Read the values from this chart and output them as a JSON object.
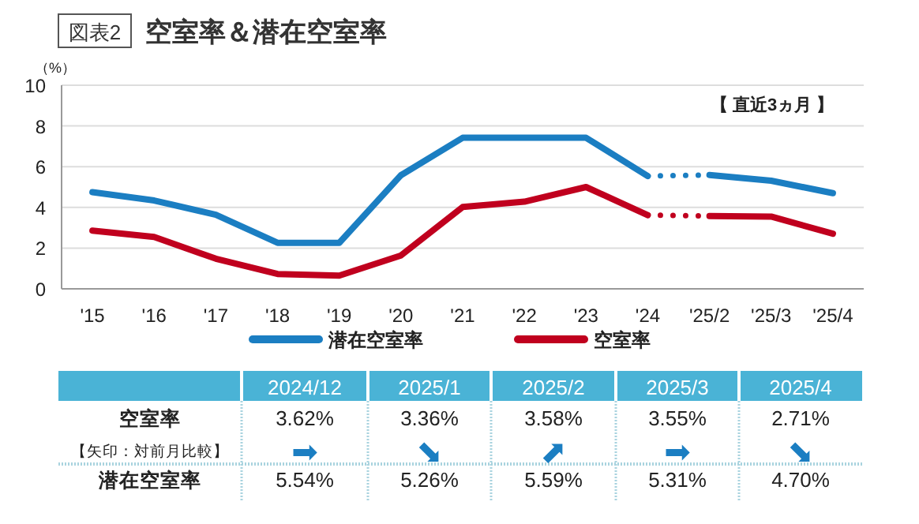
{
  "chart_data": {
    "type": "line",
    "title": "空室率＆潜在空室率",
    "ylabel": "（%）",
    "categories": [
      "'15",
      "'16",
      "'17",
      "'18",
      "'19",
      "'20",
      "'21",
      "'22",
      "'23",
      "'24",
      "'25/2",
      "'25/3",
      "'25/4"
    ],
    "series": [
      {
        "name": "潜在空室率",
        "color": "#1b7ec2",
        "line_style": "solid",
        "values": [
          4.75,
          4.34,
          3.64,
          2.26,
          2.26,
          5.58,
          7.42,
          7.42,
          7.42,
          5.54,
          null,
          null,
          null
        ]
      },
      {
        "color": "#1b7ec2",
        "line_style": "dotted",
        "values": [
          null,
          null,
          null,
          null,
          null,
          null,
          null,
          null,
          null,
          5.54,
          5.59,
          null,
          null
        ]
      },
      {
        "color": "#1b7ec2",
        "line_style": "solid",
        "values": [
          null,
          null,
          null,
          null,
          null,
          null,
          null,
          null,
          null,
          null,
          5.59,
          5.31,
          4.7
        ]
      },
      {
        "name": "空室率",
        "color": "#c0001e",
        "line_style": "solid",
        "values": [
          2.86,
          2.55,
          1.48,
          0.73,
          0.65,
          1.64,
          4.02,
          4.28,
          5.0,
          3.62,
          null,
          null,
          null
        ]
      },
      {
        "color": "#c0001e",
        "line_style": "dotted",
        "values": [
          null,
          null,
          null,
          null,
          null,
          null,
          null,
          null,
          null,
          3.62,
          3.58,
          null,
          null
        ]
      },
      {
        "color": "#c0001e",
        "line_style": "solid",
        "values": [
          null,
          null,
          null,
          null,
          null,
          null,
          null,
          null,
          null,
          null,
          3.58,
          3.55,
          2.71
        ]
      }
    ],
    "ylim": [
      0,
      10
    ],
    "yticks": [
      0,
      2,
      4,
      6,
      8,
      10
    ],
    "grid": "y",
    "legend": "bottom",
    "marker": "none",
    "annotations": [
      "図表2",
      "【 直近3ヵ月 】",
      "2024/12",
      "2025/1",
      "2025/2",
      "2025/3",
      "2025/4",
      "空室率",
      "3.62%",
      "3.36%",
      "3.58%",
      "3.55%",
      "2.71%",
      "【矢印：対前月比較】",
      "➡",
      "⬊",
      "⬈",
      "➡",
      "⬊",
      "潜在空室率",
      "5.54%",
      "5.26%",
      "5.59%",
      "5.31%",
      "4.70%"
    ]
  }
}
